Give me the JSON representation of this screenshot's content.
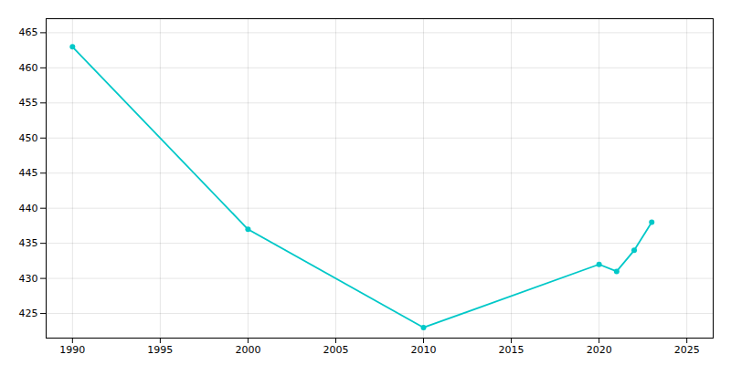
{
  "chart_data": {
    "type": "line",
    "x": [
      1990,
      2000,
      2010,
      2020,
      2021,
      2022,
      2023
    ],
    "values": [
      463,
      437,
      423,
      432,
      431,
      434,
      438
    ],
    "color": "#00C8C8",
    "marker": "o",
    "xlim": [
      1988.5,
      2026.5
    ],
    "ylim": [
      421.5,
      467
    ],
    "xticks": [
      1990,
      1995,
      2000,
      2005,
      2010,
      2015,
      2020,
      2025
    ],
    "yticks": [
      425,
      430,
      435,
      440,
      445,
      450,
      455,
      460,
      465
    ],
    "grid": true
  }
}
